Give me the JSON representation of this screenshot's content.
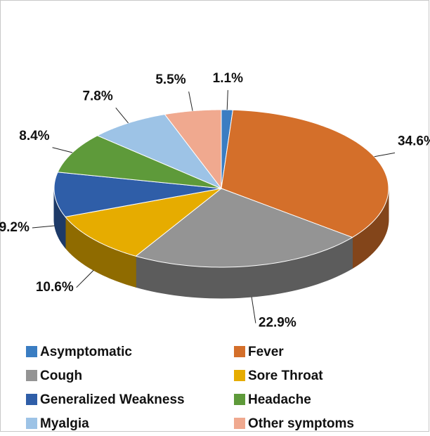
{
  "chart_data": {
    "type": "pie",
    "categories": [
      "Asymptomatic",
      "Fever",
      "Cough",
      "Sore Throat",
      "Generalized Weakness",
      "Headache",
      "Myalgia",
      "Other symptoms"
    ],
    "values": [
      1.1,
      34.6,
      22.9,
      10.6,
      9.2,
      8.4,
      7.8,
      5.5
    ],
    "value_labels": [
      "1.1%",
      "34.6%",
      "22.9%",
      "10.6%",
      "9.2%",
      "8.4%",
      "7.8%",
      "5.5%"
    ],
    "colors": [
      "#3a7dc2",
      "#d46f2a",
      "#949494",
      "#e6ac00",
      "#2f5ea8",
      "#5e9a3a",
      "#9dc3e6",
      "#f0a98f"
    ],
    "legend": "bottom"
  }
}
